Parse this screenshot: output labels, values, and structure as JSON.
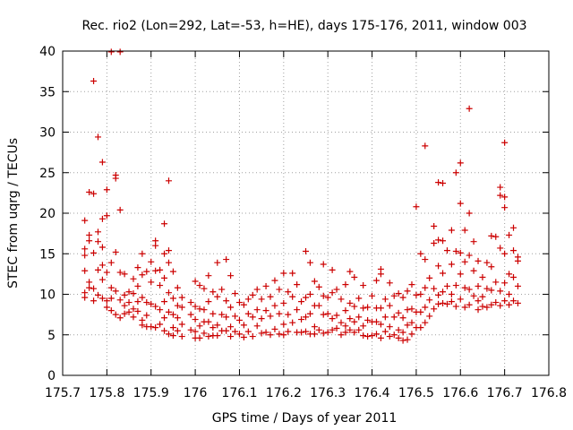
{
  "chart_data": {
    "type": "scatter",
    "title": "Rec. rio2 (Lon=292, Lat=-53, h=HE), days 175-176, 2011, window 003",
    "xlabel": "GPS time / Days of year 2011",
    "ylabel": "STEC from uqrg / TECUs",
    "xlim": [
      175.7,
      176.8
    ],
    "ylim": [
      0,
      40
    ],
    "xticks": [
      "175.7",
      "175.8",
      "175.9",
      "176",
      "176.1",
      "176.2",
      "176.3",
      "176.4",
      "176.5",
      "176.6",
      "176.7",
      "176.8"
    ],
    "yticks": [
      "0",
      "5",
      "10",
      "15",
      "20",
      "25",
      "30",
      "35",
      "40"
    ],
    "grid": true,
    "marker": "plus",
    "color": "#cc0000",
    "points": [
      [
        175.75,
        19.1
      ],
      [
        175.75,
        15.6
      ],
      [
        175.75,
        14.8
      ],
      [
        175.75,
        12.9
      ],
      [
        175.75,
        10.2
      ],
      [
        175.75,
        9.6
      ],
      [
        175.76,
        22.6
      ],
      [
        175.76,
        17.3
      ],
      [
        175.76,
        16.6
      ],
      [
        175.76,
        11.5
      ],
      [
        175.76,
        10.8
      ],
      [
        175.77,
        36.3
      ],
      [
        175.77,
        22.4
      ],
      [
        175.77,
        15.1
      ],
      [
        175.77,
        10.7
      ],
      [
        175.77,
        9.2
      ],
      [
        175.78,
        29.4
      ],
      [
        175.78,
        17.7
      ],
      [
        175.78,
        16.5
      ],
      [
        175.78,
        13.0
      ],
      [
        175.78,
        9.9
      ],
      [
        175.79,
        26.3
      ],
      [
        175.79,
        19.3
      ],
      [
        175.79,
        15.8
      ],
      [
        175.79,
        13.6
      ],
      [
        175.79,
        11.8
      ],
      [
        175.79,
        9.5
      ],
      [
        175.8,
        22.9
      ],
      [
        175.8,
        19.7
      ],
      [
        175.8,
        12.7
      ],
      [
        175.8,
        9.2
      ],
      [
        175.8,
        8.4
      ],
      [
        175.81,
        39.9
      ],
      [
        175.81,
        13.9
      ],
      [
        175.81,
        10.8
      ],
      [
        175.81,
        9.5
      ],
      [
        175.81,
        8.0
      ],
      [
        175.82,
        24.7
      ],
      [
        175.82,
        24.3
      ],
      [
        175.82,
        15.2
      ],
      [
        175.82,
        10.4
      ],
      [
        175.82,
        7.5
      ],
      [
        175.83,
        39.9
      ],
      [
        175.83,
        20.4
      ],
      [
        175.83,
        12.7
      ],
      [
        175.83,
        9.3
      ],
      [
        175.83,
        7.1
      ],
      [
        175.84,
        12.5
      ],
      [
        175.84,
        9.9
      ],
      [
        175.84,
        8.6
      ],
      [
        175.84,
        7.6
      ],
      [
        175.85,
        10.3
      ],
      [
        175.85,
        9.0
      ],
      [
        175.85,
        7.8
      ],
      [
        175.86,
        11.9
      ],
      [
        175.86,
        10.1
      ],
      [
        175.86,
        8.2
      ],
      [
        175.86,
        7.2
      ],
      [
        175.87,
        13.3
      ],
      [
        175.87,
        11.0
      ],
      [
        175.87,
        9.1
      ],
      [
        175.87,
        7.9
      ],
      [
        175.88,
        15.0
      ],
      [
        175.88,
        12.4
      ],
      [
        175.88,
        9.6
      ],
      [
        175.88,
        6.8
      ],
      [
        175.88,
        6.2
      ],
      [
        175.89,
        12.8
      ],
      [
        175.89,
        9.0
      ],
      [
        175.89,
        7.4
      ],
      [
        175.89,
        6.0
      ],
      [
        175.9,
        14.0
      ],
      [
        175.9,
        11.5
      ],
      [
        175.9,
        8.8
      ],
      [
        175.9,
        6.0
      ],
      [
        175.91,
        16.6
      ],
      [
        175.91,
        16.0
      ],
      [
        175.91,
        12.9
      ],
      [
        175.91,
        8.5
      ],
      [
        175.91,
        5.9
      ],
      [
        175.92,
        13.0
      ],
      [
        175.92,
        11.1
      ],
      [
        175.92,
        8.1
      ],
      [
        175.92,
        6.3
      ],
      [
        175.93,
        18.7
      ],
      [
        175.93,
        15.0
      ],
      [
        175.93,
        12.0
      ],
      [
        175.93,
        9.1
      ],
      [
        175.93,
        7.1
      ],
      [
        175.93,
        5.5
      ],
      [
        175.94,
        24.0
      ],
      [
        175.94,
        15.4
      ],
      [
        175.94,
        13.9
      ],
      [
        175.94,
        10.2
      ],
      [
        175.94,
        7.8
      ],
      [
        175.94,
        5.1
      ],
      [
        175.95,
        12.8
      ],
      [
        175.95,
        9.5
      ],
      [
        175.95,
        7.5
      ],
      [
        175.95,
        5.9
      ],
      [
        175.95,
        4.9
      ],
      [
        175.96,
        10.8
      ],
      [
        175.96,
        8.6
      ],
      [
        175.96,
        7.1
      ],
      [
        175.96,
        5.5
      ],
      [
        175.97,
        9.6
      ],
      [
        175.97,
        8.4
      ],
      [
        175.97,
        6.3
      ],
      [
        175.97,
        4.8
      ],
      [
        175.99,
        9.0
      ],
      [
        175.99,
        7.5
      ],
      [
        175.99,
        5.6
      ],
      [
        176.0,
        11.6
      ],
      [
        176.0,
        8.5
      ],
      [
        176.0,
        6.9
      ],
      [
        176.0,
        5.4
      ],
      [
        176.0,
        4.6
      ],
      [
        176.01,
        11.1
      ],
      [
        176.01,
        8.2
      ],
      [
        176.01,
        6.1
      ],
      [
        176.01,
        4.6
      ],
      [
        176.02,
        10.7
      ],
      [
        176.02,
        8.1
      ],
      [
        176.02,
        6.6
      ],
      [
        176.02,
        5.2
      ],
      [
        176.03,
        12.3
      ],
      [
        176.03,
        9.1
      ],
      [
        176.03,
        6.6
      ],
      [
        176.03,
        4.8
      ],
      [
        176.04,
        10.3
      ],
      [
        176.04,
        7.6
      ],
      [
        176.04,
        5.9
      ],
      [
        176.04,
        4.9
      ],
      [
        176.05,
        13.9
      ],
      [
        176.05,
        9.7
      ],
      [
        176.05,
        6.2
      ],
      [
        176.05,
        4.9
      ],
      [
        176.06,
        10.6
      ],
      [
        176.06,
        7.5
      ],
      [
        176.06,
        5.5
      ],
      [
        176.07,
        14.3
      ],
      [
        176.07,
        9.2
      ],
      [
        176.07,
        7.2
      ],
      [
        176.07,
        5.5
      ],
      [
        176.08,
        12.3
      ],
      [
        176.08,
        8.4
      ],
      [
        176.08,
        6.0
      ],
      [
        176.08,
        4.8
      ],
      [
        176.09,
        10.1
      ],
      [
        176.09,
        7.3
      ],
      [
        176.09,
        5.4
      ],
      [
        176.1,
        9.0
      ],
      [
        176.1,
        6.8
      ],
      [
        176.1,
        5.1
      ],
      [
        176.11,
        8.7
      ],
      [
        176.11,
        6.2
      ],
      [
        176.11,
        4.7
      ],
      [
        176.12,
        9.4
      ],
      [
        176.12,
        7.6
      ],
      [
        176.12,
        5.4
      ],
      [
        176.13,
        9.9
      ],
      [
        176.13,
        7.2
      ],
      [
        176.13,
        4.8
      ],
      [
        176.14,
        10.6
      ],
      [
        176.14,
        8.1
      ],
      [
        176.14,
        6.1
      ],
      [
        176.15,
        9.4
      ],
      [
        176.15,
        7.0
      ],
      [
        176.15,
        5.2
      ],
      [
        176.16,
        11.0
      ],
      [
        176.16,
        8.0
      ],
      [
        176.16,
        5.3
      ],
      [
        176.17,
        9.7
      ],
      [
        176.17,
        7.3
      ],
      [
        176.17,
        5.0
      ],
      [
        176.18,
        11.7
      ],
      [
        176.18,
        8.6
      ],
      [
        176.18,
        5.7
      ],
      [
        176.19,
        10.6
      ],
      [
        176.19,
        7.6
      ],
      [
        176.19,
        5.1
      ],
      [
        176.2,
        12.6
      ],
      [
        176.2,
        8.9
      ],
      [
        176.2,
        6.3
      ],
      [
        176.2,
        5.0
      ],
      [
        176.21,
        10.3
      ],
      [
        176.21,
        7.5
      ],
      [
        176.21,
        5.4
      ],
      [
        176.22,
        12.6
      ],
      [
        176.22,
        9.7
      ],
      [
        176.22,
        6.5
      ],
      [
        176.23,
        11.2
      ],
      [
        176.23,
        8.1
      ],
      [
        176.23,
        5.3
      ],
      [
        176.24,
        9.1
      ],
      [
        176.24,
        6.9
      ],
      [
        176.24,
        5.3
      ],
      [
        176.25,
        15.3
      ],
      [
        176.25,
        9.6
      ],
      [
        176.25,
        7.2
      ],
      [
        176.25,
        5.4
      ],
      [
        176.26,
        13.9
      ],
      [
        176.26,
        10.0
      ],
      [
        176.26,
        7.6
      ],
      [
        176.26,
        5.1
      ],
      [
        176.27,
        11.6
      ],
      [
        176.27,
        8.6
      ],
      [
        176.27,
        6.0
      ],
      [
        176.27,
        5.1
      ],
      [
        176.28,
        10.9
      ],
      [
        176.28,
        8.6
      ],
      [
        176.28,
        5.6
      ],
      [
        176.29,
        13.7
      ],
      [
        176.29,
        9.8
      ],
      [
        176.29,
        7.5
      ],
      [
        176.29,
        5.2
      ],
      [
        176.3,
        9.6
      ],
      [
        176.3,
        7.6
      ],
      [
        176.3,
        5.3
      ],
      [
        176.31,
        13.0
      ],
      [
        176.31,
        10.2
      ],
      [
        176.31,
        7.0
      ],
      [
        176.31,
        5.6
      ],
      [
        176.32,
        10.6
      ],
      [
        176.32,
        7.4
      ],
      [
        176.32,
        5.8
      ],
      [
        176.33,
        9.4
      ],
      [
        176.33,
        6.5
      ],
      [
        176.33,
        5.0
      ],
      [
        176.34,
        11.2
      ],
      [
        176.34,
        8.0
      ],
      [
        176.34,
        6.1
      ],
      [
        176.34,
        5.3
      ],
      [
        176.35,
        12.8
      ],
      [
        176.35,
        8.9
      ],
      [
        176.35,
        7.0
      ],
      [
        176.35,
        5.6
      ],
      [
        176.36,
        12.1
      ],
      [
        176.36,
        8.5
      ],
      [
        176.36,
        6.6
      ],
      [
        176.36,
        5.3
      ],
      [
        176.37,
        9.5
      ],
      [
        176.37,
        7.2
      ],
      [
        176.37,
        5.6
      ],
      [
        176.38,
        11.1
      ],
      [
        176.38,
        8.3
      ],
      [
        176.38,
        6.1
      ],
      [
        176.38,
        4.9
      ],
      [
        176.39,
        8.4
      ],
      [
        176.39,
        6.8
      ],
      [
        176.39,
        4.8
      ],
      [
        176.4,
        9.8
      ],
      [
        176.4,
        6.6
      ],
      [
        176.4,
        4.9
      ],
      [
        176.41,
        11.7
      ],
      [
        176.41,
        8.3
      ],
      [
        176.41,
        6.6
      ],
      [
        176.41,
        5.1
      ],
      [
        176.42,
        13.1
      ],
      [
        176.42,
        12.5
      ],
      [
        176.42,
        8.3
      ],
      [
        176.42,
        6.3
      ],
      [
        176.42,
        4.6
      ],
      [
        176.43,
        9.4
      ],
      [
        176.43,
        7.2
      ],
      [
        176.43,
        5.4
      ],
      [
        176.44,
        11.4
      ],
      [
        176.44,
        8.6
      ],
      [
        176.44,
        6.0
      ],
      [
        176.44,
        4.8
      ],
      [
        176.45,
        9.8
      ],
      [
        176.45,
        7.2
      ],
      [
        176.45,
        5.0
      ],
      [
        176.46,
        10.1
      ],
      [
        176.46,
        7.7
      ],
      [
        176.46,
        5.6
      ],
      [
        176.46,
        4.6
      ],
      [
        176.47,
        9.6
      ],
      [
        176.47,
        7.1
      ],
      [
        176.47,
        5.3
      ],
      [
        176.47,
        4.3
      ],
      [
        176.48,
        10.4
      ],
      [
        176.48,
        8.1
      ],
      [
        176.48,
        6.2
      ],
      [
        176.48,
        4.4
      ],
      [
        176.49,
        11.2
      ],
      [
        176.49,
        8.2
      ],
      [
        176.49,
        6.5
      ],
      [
        176.49,
        5.1
      ],
      [
        176.5,
        20.8
      ],
      [
        176.5,
        9.9
      ],
      [
        176.5,
        7.8
      ],
      [
        176.5,
        5.9
      ],
      [
        176.51,
        15.0
      ],
      [
        176.51,
        10.0
      ],
      [
        176.51,
        7.8
      ],
      [
        176.51,
        5.9
      ],
      [
        176.52,
        28.3
      ],
      [
        176.52,
        14.3
      ],
      [
        176.52,
        10.8
      ],
      [
        176.52,
        8.4
      ],
      [
        176.52,
        6.5
      ],
      [
        176.53,
        12.0
      ],
      [
        176.53,
        9.3
      ],
      [
        176.53,
        7.3
      ],
      [
        176.54,
        18.4
      ],
      [
        176.54,
        16.3
      ],
      [
        176.54,
        10.7
      ],
      [
        176.54,
        8.2
      ],
      [
        176.55,
        23.8
      ],
      [
        176.55,
        16.7
      ],
      [
        176.55,
        13.5
      ],
      [
        176.55,
        9.9
      ],
      [
        176.55,
        8.8
      ],
      [
        176.56,
        23.7
      ],
      [
        176.56,
        16.6
      ],
      [
        176.56,
        12.6
      ],
      [
        176.56,
        10.3
      ],
      [
        176.56,
        8.9
      ],
      [
        176.57,
        15.4
      ],
      [
        176.57,
        11.0
      ],
      [
        176.57,
        8.8
      ],
      [
        176.58,
        17.9
      ],
      [
        176.58,
        13.7
      ],
      [
        176.58,
        10.0
      ],
      [
        176.58,
        9.1
      ],
      [
        176.59,
        25.0
      ],
      [
        176.59,
        15.3
      ],
      [
        176.59,
        11.1
      ],
      [
        176.59,
        8.5
      ],
      [
        176.6,
        26.2
      ],
      [
        176.6,
        21.2
      ],
      [
        176.6,
        15.1
      ],
      [
        176.6,
        12.5
      ],
      [
        176.6,
        9.4
      ],
      [
        176.61,
        17.9
      ],
      [
        176.61,
        14.0
      ],
      [
        176.61,
        10.8
      ],
      [
        176.61,
        8.4
      ],
      [
        176.62,
        32.9
      ],
      [
        176.62,
        20.0
      ],
      [
        176.62,
        14.8
      ],
      [
        176.62,
        10.6
      ],
      [
        176.62,
        8.7
      ],
      [
        176.63,
        16.5
      ],
      [
        176.63,
        12.9
      ],
      [
        176.63,
        9.8
      ],
      [
        176.64,
        14.1
      ],
      [
        176.64,
        11.0
      ],
      [
        176.64,
        9.2
      ],
      [
        176.64,
        8.1
      ],
      [
        176.65,
        12.1
      ],
      [
        176.65,
        9.7
      ],
      [
        176.65,
        8.5
      ],
      [
        176.66,
        13.9
      ],
      [
        176.66,
        10.7
      ],
      [
        176.66,
        8.4
      ],
      [
        176.67,
        17.2
      ],
      [
        176.67,
        13.4
      ],
      [
        176.67,
        10.5
      ],
      [
        176.67,
        8.7
      ],
      [
        176.68,
        17.1
      ],
      [
        176.68,
        11.5
      ],
      [
        176.68,
        9.0
      ],
      [
        176.69,
        23.2
      ],
      [
        176.69,
        22.2
      ],
      [
        176.69,
        15.7
      ],
      [
        176.69,
        10.4
      ],
      [
        176.69,
        8.6
      ],
      [
        176.7,
        28.7
      ],
      [
        176.7,
        22.0
      ],
      [
        176.7,
        20.7
      ],
      [
        176.7,
        15.0
      ],
      [
        176.7,
        11.4
      ],
      [
        176.7,
        9.2
      ],
      [
        176.71,
        17.3
      ],
      [
        176.71,
        12.5
      ],
      [
        176.71,
        10.0
      ],
      [
        176.71,
        8.7
      ],
      [
        176.72,
        18.2
      ],
      [
        176.72,
        15.4
      ],
      [
        176.72,
        12.1
      ],
      [
        176.72,
        9.2
      ],
      [
        176.73,
        14.6
      ],
      [
        176.73,
        14.1
      ],
      [
        176.73,
        11.0
      ],
      [
        176.73,
        8.9
      ]
    ]
  }
}
